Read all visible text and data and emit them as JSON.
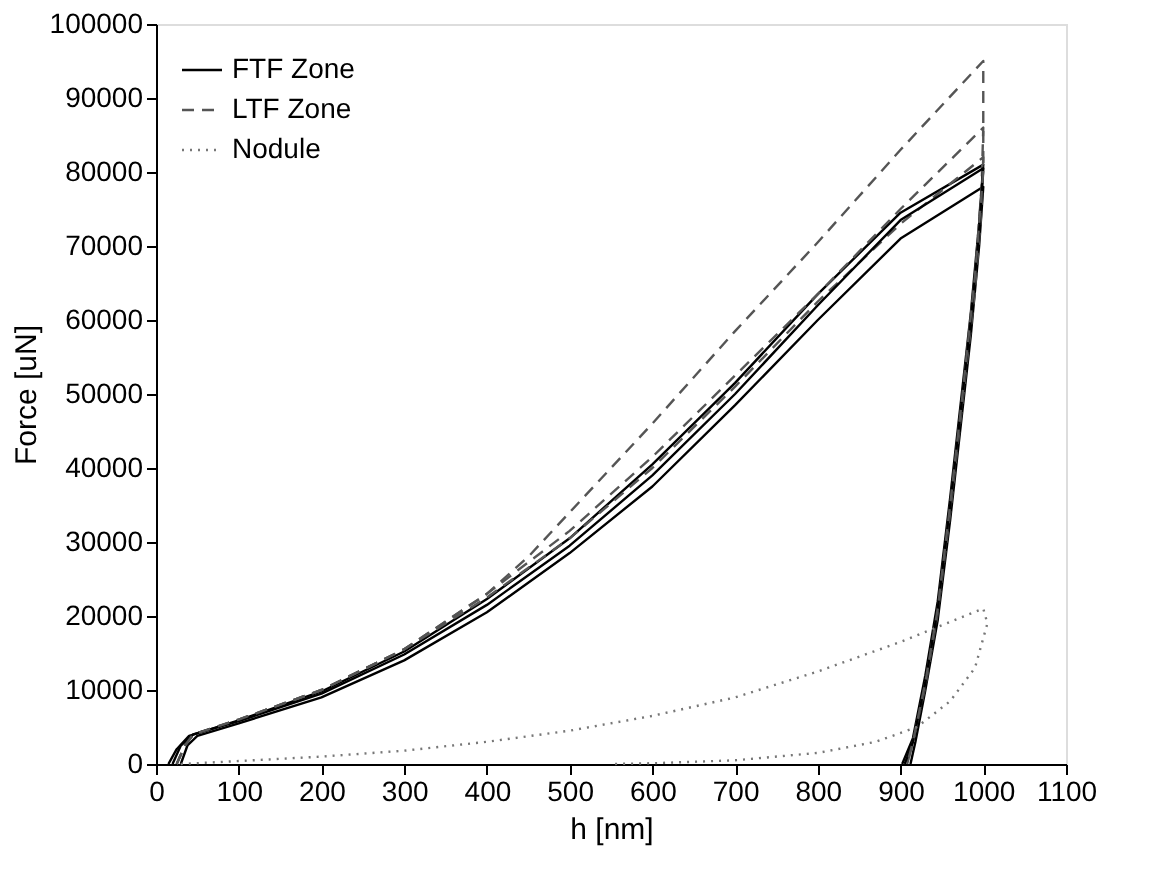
{
  "chart_data": {
    "type": "line",
    "xlabel": "h [nm]",
    "ylabel": "Force [uN]",
    "xlim": [
      0,
      1100
    ],
    "xticks": [
      0,
      100,
      200,
      300,
      400,
      500,
      600,
      700,
      800,
      900,
      1000,
      1100
    ],
    "ylim": [
      0,
      100000
    ],
    "yticks": [
      0,
      10000,
      20000,
      30000,
      40000,
      50000,
      60000,
      70000,
      80000,
      90000,
      100000
    ],
    "grid": false,
    "legend": "top left",
    "marker": "none",
    "series": [
      {
        "name": "FTF Zone",
        "color": "#000000",
        "line_style": "solid",
        "x": [
          20,
          30,
          45,
          100,
          200,
          300,
          400,
          500,
          600,
          700,
          800,
          900,
          1000,
          995,
          985,
          975,
          960,
          945,
          930,
          915,
          905
        ],
        "values": [
          0,
          2500,
          4000,
          5800,
          9500,
          14800,
          21500,
          29500,
          39000,
          50000,
          62000,
          73500,
          80500,
          72000,
          60000,
          50000,
          35000,
          21000,
          11000,
          3000,
          0
        ]
      },
      {
        "color": "#000000",
        "line_style": "solid",
        "x": [
          30,
          38,
          50,
          100,
          200,
          300,
          400,
          500,
          600,
          700,
          800,
          900,
          1000,
          995,
          985,
          975,
          960,
          945,
          930,
          918,
          912
        ],
        "values": [
          0,
          2500,
          3800,
          5500,
          9000,
          14000,
          20500,
          28500,
          37500,
          48500,
          60000,
          71000,
          78000,
          70000,
          58000,
          48000,
          33000,
          19500,
          10000,
          3000,
          0
        ]
      },
      {
        "color": "#000000",
        "line_style": "solid",
        "x": [
          15,
          25,
          40,
          100,
          200,
          300,
          400,
          500,
          600,
          700,
          800,
          900,
          1000,
          995,
          985,
          975,
          960,
          945,
          930,
          915,
          902
        ],
        "values": [
          0,
          2000,
          3800,
          5900,
          9800,
          15200,
          22300,
          30500,
          40500,
          51500,
          63500,
          74500,
          81000,
          73000,
          61000,
          51000,
          36000,
          22000,
          12000,
          3500,
          0
        ]
      },
      {
        "name": "LTF Zone",
        "color": "#555555",
        "line_style": "dashed",
        "x": [
          25,
          35,
          45,
          100,
          200,
          300,
          400,
          450,
          500,
          600,
          700,
          800,
          900,
          1000,
          1000,
          990,
          975,
          960,
          945,
          930,
          915,
          908
        ],
        "values": [
          0,
          2500,
          4000,
          6000,
          10000,
          15500,
          23000,
          28000,
          34000,
          46000,
          58500,
          70500,
          83000,
          95000,
          80000,
          66000,
          50000,
          35000,
          21000,
          11000,
          3000,
          0
        ]
      },
      {
        "color": "#555555",
        "line_style": "dashed",
        "x": [
          25,
          35,
          45,
          100,
          200,
          300,
          400,
          500,
          600,
          700,
          800,
          900,
          1000,
          998,
          990,
          975,
          960,
          945,
          930,
          915,
          908
        ],
        "values": [
          0,
          2500,
          4000,
          6000,
          10000,
          15500,
          23000,
          31500,
          41500,
          52500,
          63500,
          75000,
          86000,
          78000,
          66000,
          50000,
          35000,
          21000,
          11000,
          3000,
          0
        ]
      },
      {
        "color": "#555555",
        "line_style": "dashed",
        "x": [
          25,
          35,
          45,
          100,
          200,
          300,
          400,
          500,
          600,
          700,
          800,
          900,
          1000,
          998,
          990,
          975,
          960,
          945,
          930,
          915,
          908
        ],
        "values": [
          0,
          2500,
          4000,
          6000,
          10000,
          15500,
          22500,
          30500,
          40000,
          51000,
          62500,
          73000,
          82000,
          75000,
          64000,
          49000,
          34000,
          20500,
          10500,
          3000,
          0
        ]
      },
      {
        "name": "Nodule",
        "color": "#777777",
        "line_style": "dotted",
        "x": [
          30,
          100,
          200,
          300,
          400,
          500,
          600,
          700,
          800,
          900,
          1000,
          1005,
          990,
          960,
          920,
          870,
          800,
          700,
          600,
          550
        ],
        "values": [
          0,
          400,
          1000,
          1800,
          3000,
          4500,
          6500,
          9000,
          12500,
          16500,
          21000,
          19000,
          13000,
          8500,
          5000,
          3000,
          1500,
          500,
          100,
          0
        ]
      }
    ]
  }
}
